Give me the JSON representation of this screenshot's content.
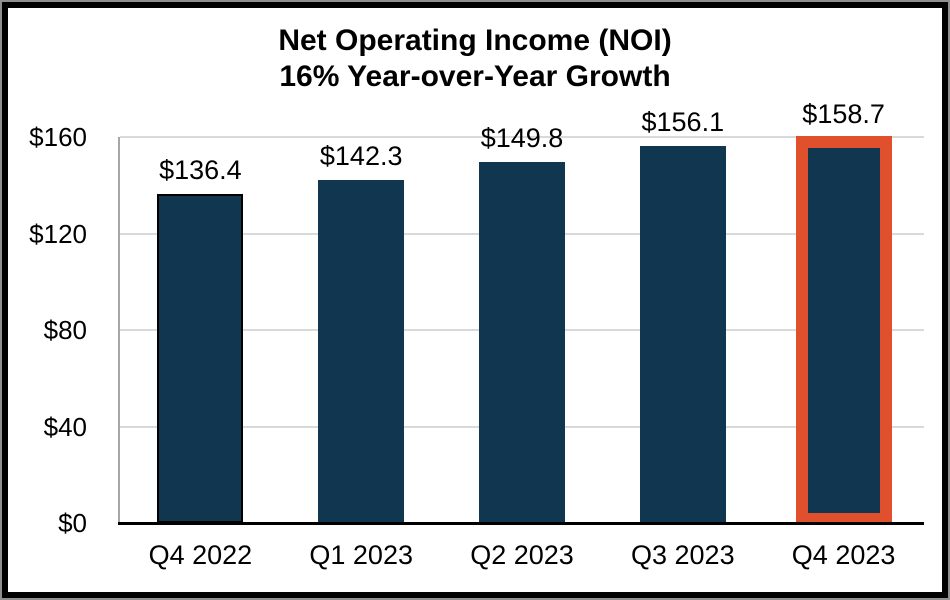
{
  "chart_data": {
    "type": "bar",
    "title_line1": "Net Operating Income (NOI)",
    "title_line2": "16% Year-over-Year Growth",
    "categories": [
      "Q4 2022",
      "Q1 2023",
      "Q2 2023",
      "Q3 2023",
      "Q4 2023"
    ],
    "values": [
      136.4,
      142.3,
      149.8,
      156.1,
      158.7
    ],
    "data_labels": [
      "$136.4",
      "$142.3",
      "$149.8",
      "$156.1",
      "$158.7"
    ],
    "y_ticks": {
      "values": [
        0,
        40,
        80,
        120,
        160
      ],
      "labels": [
        "$0",
        "$40",
        "$80",
        "$120",
        "$160"
      ]
    },
    "ylim": [
      0,
      160
    ],
    "grid": true,
    "legend": "none",
    "xlabel": "",
    "ylabel": "",
    "highlight_index": 4,
    "highlighted_category": "Q4 2023",
    "outlined_bar_index": 0,
    "colors": {
      "bar": "#10374F",
      "bar_outline": "#000000",
      "highlight_border": "#E0502C",
      "gridline": "#D9D9D9",
      "y_axis_line": "#A6A6A6",
      "x_axis_line": "#000000",
      "title_text": "#000000",
      "label_text": "#000000"
    }
  }
}
